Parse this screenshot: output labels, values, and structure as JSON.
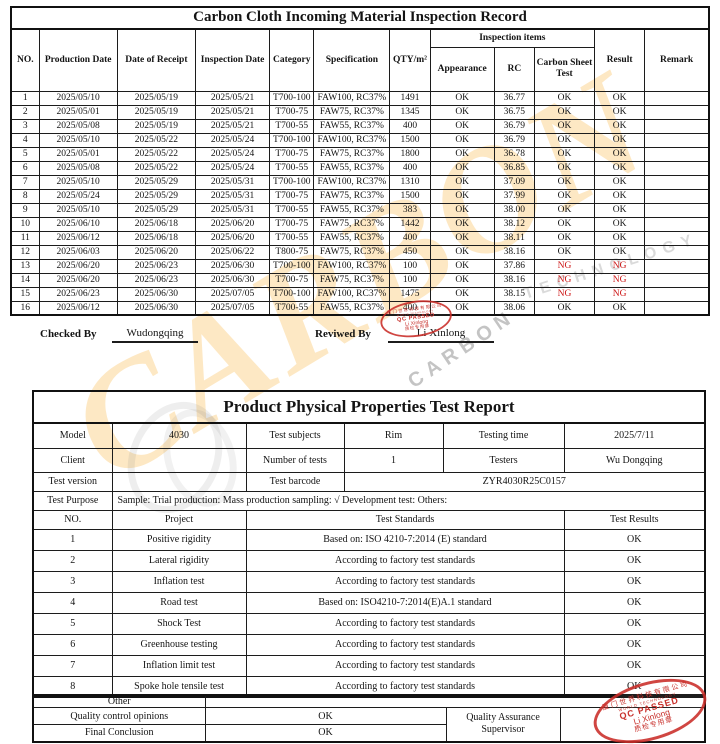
{
  "table1": {
    "title": "Carbon Cloth Incoming Material Inspection Record",
    "headers": {
      "no": "NO.",
      "production_date": "Production Date",
      "date_of_receipt": "Date of Receipt",
      "inspection_date": "Inspection Date",
      "category": "Category",
      "specification": "Specification",
      "qty": "QTY/m²",
      "inspection_items": "Inspection items",
      "appearance": "Appearance",
      "rc": "RC",
      "carbon_sheet_test": "Carbon Sheet Test",
      "result": "Result",
      "remark": "Remark"
    },
    "rows": [
      {
        "no": "1",
        "production_date": "2025/05/10",
        "date_of_receipt": "2025/05/19",
        "inspection_date": "2025/05/21",
        "category": "T700-100",
        "specification": "FAW100, RC37%",
        "qty": "1491",
        "appearance": "OK",
        "rc": "36.77",
        "carbon_sheet_test": "OK",
        "result": "OK",
        "remark": ""
      },
      {
        "no": "2",
        "production_date": "2025/05/01",
        "date_of_receipt": "2025/05/19",
        "inspection_date": "2025/05/21",
        "category": "T700-75",
        "specification": "FAW75, RC37%",
        "qty": "1345",
        "appearance": "OK",
        "rc": "36.75",
        "carbon_sheet_test": "OK",
        "result": "OK",
        "remark": ""
      },
      {
        "no": "3",
        "production_date": "2025/05/08",
        "date_of_receipt": "2025/05/19",
        "inspection_date": "2025/05/21",
        "category": "T700-55",
        "specification": "FAW55, RC37%",
        "qty": "400",
        "appearance": "OK",
        "rc": "36.79",
        "carbon_sheet_test": "OK",
        "result": "OK",
        "remark": ""
      },
      {
        "no": "4",
        "production_date": "2025/05/10",
        "date_of_receipt": "2025/05/22",
        "inspection_date": "2025/05/24",
        "category": "T700-100",
        "specification": "FAW100, RC37%",
        "qty": "1500",
        "appearance": "OK",
        "rc": "36.79",
        "carbon_sheet_test": "OK",
        "result": "OK",
        "remark": ""
      },
      {
        "no": "5",
        "production_date": "2025/05/01",
        "date_of_receipt": "2025/05/22",
        "inspection_date": "2025/05/24",
        "category": "T700-75",
        "specification": "FAW75, RC37%",
        "qty": "1800",
        "appearance": "OK",
        "rc": "36.78",
        "carbon_sheet_test": "OK",
        "result": "OK",
        "remark": ""
      },
      {
        "no": "6",
        "production_date": "2025/05/08",
        "date_of_receipt": "2025/05/22",
        "inspection_date": "2025/05/24",
        "category": "T700-55",
        "specification": "FAW55, RC37%",
        "qty": "400",
        "appearance": "OK",
        "rc": "36.85",
        "carbon_sheet_test": "OK",
        "result": "OK",
        "remark": ""
      },
      {
        "no": "7",
        "production_date": "2025/05/10",
        "date_of_receipt": "2025/05/29",
        "inspection_date": "2025/05/31",
        "category": "T700-100",
        "specification": "FAW100, RC37%",
        "qty": "1310",
        "appearance": "OK",
        "rc": "37.09",
        "carbon_sheet_test": "OK",
        "result": "OK",
        "remark": ""
      },
      {
        "no": "8",
        "production_date": "2025/05/24",
        "date_of_receipt": "2025/05/29",
        "inspection_date": "2025/05/31",
        "category": "T700-75",
        "specification": "FAW75, RC37%",
        "qty": "1500",
        "appearance": "OK",
        "rc": "37.99",
        "carbon_sheet_test": "OK",
        "result": "OK",
        "remark": ""
      },
      {
        "no": "9",
        "production_date": "2025/05/10",
        "date_of_receipt": "2025/05/29",
        "inspection_date": "2025/05/31",
        "category": "T700-55",
        "specification": "FAW55, RC37%",
        "qty": "383",
        "appearance": "OK",
        "rc": "38.00",
        "carbon_sheet_test": "OK",
        "result": "OK",
        "remark": ""
      },
      {
        "no": "10",
        "production_date": "2025/06/10",
        "date_of_receipt": "2025/06/18",
        "inspection_date": "2025/06/20",
        "category": "T700-75",
        "specification": "FAW75, RC37%",
        "qty": "1442",
        "appearance": "OK",
        "rc": "38.12",
        "carbon_sheet_test": "OK",
        "result": "OK",
        "remark": ""
      },
      {
        "no": "11",
        "production_date": "2025/06/12",
        "date_of_receipt": "2025/06/18",
        "inspection_date": "2025/06/20",
        "category": "T700-55",
        "specification": "FAW55, RC37%",
        "qty": "400",
        "appearance": "OK",
        "rc": "38.11",
        "carbon_sheet_test": "OK",
        "result": "OK",
        "remark": ""
      },
      {
        "no": "12",
        "production_date": "2025/06/03",
        "date_of_receipt": "2025/06/20",
        "inspection_date": "2025/06/22",
        "category": "T800-75",
        "specification": "FAW75, RC37%",
        "qty": "450",
        "appearance": "OK",
        "rc": "38.16",
        "carbon_sheet_test": "OK",
        "result": "OK",
        "remark": ""
      },
      {
        "no": "13",
        "production_date": "2025/06/20",
        "date_of_receipt": "2025/06/23",
        "inspection_date": "2025/06/30",
        "category": "T700-100",
        "specification": "FAW100, RC37%",
        "qty": "100",
        "appearance": "OK",
        "rc": "37.86",
        "carbon_sheet_test": "NG",
        "result": "NG",
        "remark": ""
      },
      {
        "no": "14",
        "production_date": "2025/06/20",
        "date_of_receipt": "2025/06/23",
        "inspection_date": "2025/06/30",
        "category": "T700-75",
        "specification": "FAW75, RC37%",
        "qty": "100",
        "appearance": "OK",
        "rc": "38.16",
        "carbon_sheet_test": "NG",
        "result": "NG",
        "remark": ""
      },
      {
        "no": "15",
        "production_date": "2025/06/23",
        "date_of_receipt": "2025/06/30",
        "inspection_date": "2025/07/05",
        "category": "T700-100",
        "specification": "FAW100, RC37%",
        "qty": "1475",
        "appearance": "OK",
        "rc": "38.15",
        "carbon_sheet_test": "NG",
        "result": "NG",
        "remark": ""
      },
      {
        "no": "16",
        "production_date": "2025/06/12",
        "date_of_receipt": "2025/06/30",
        "inspection_date": "2025/07/05",
        "category": "T700-55",
        "specification": "FAW55, RC37%",
        "qty": "400",
        "appearance": "OK",
        "rc": "38.06",
        "carbon_sheet_test": "OK",
        "result": "OK",
        "remark": ""
      }
    ]
  },
  "signatures": {
    "checked_by_label": "Checked By",
    "checked_by_name": "Wudongqing",
    "reviewed_by_label": "Reviwed By",
    "reviewed_by_name": "Li Xinlong"
  },
  "table2": {
    "title": "Product Physical Properties Test Report",
    "info": {
      "model_label": "Model",
      "model": "4030",
      "test_subjects_label": "Test subjects",
      "test_subjects": "Rim",
      "testing_time_label": "Testing time",
      "testing_time": "2025/7/11",
      "client_label": "Client",
      "client": "",
      "number_of_tests_label": "Number of tests",
      "number_of_tests": "1",
      "testers_label": "Testers",
      "testers": "Wu Dongqing",
      "test_version_label": "Test version",
      "test_version": "",
      "test_barcode_label": "Test barcode",
      "test_barcode": "ZYR4030R25C0157",
      "test_purpose_label": "Test Purpose",
      "test_purpose": "Sample: Trial production: Mass production sampling: √ Development test: Others:"
    },
    "headers": {
      "no": "NO.",
      "project": "Project",
      "standards": "Test Standards",
      "results": "Test Results"
    },
    "tests": [
      {
        "no": "1",
        "project": "Positive rigidity",
        "standard": "Based on: ISO 4210-7:2014 (E) standard",
        "result": "OK"
      },
      {
        "no": "2",
        "project": "Lateral rigidity",
        "standard": "According to factory test standards",
        "result": "OK"
      },
      {
        "no": "3",
        "project": "Inflation test",
        "standard": "According to factory test standards",
        "result": "OK"
      },
      {
        "no": "4",
        "project": "Road test",
        "standard": "Based on: ISO4210-7:2014(E)A.1 standard",
        "result": "OK"
      },
      {
        "no": "5",
        "project": "Shock Test",
        "standard": "According to factory test standards",
        "result": "OK"
      },
      {
        "no": "6",
        "project": "Greenhouse testing",
        "standard": "According to factory test standards",
        "result": "OK"
      },
      {
        "no": "7",
        "project": "Inflation limit test",
        "standard": "According to factory test standards",
        "result": "OK"
      },
      {
        "no": "8",
        "project": "Spoke hole tensile test",
        "standard": "According to factory test standards",
        "result": "OK"
      }
    ],
    "other_label": "Other",
    "quality_control_label": "Quality control opinions",
    "quality_control_value": "OK",
    "final_conclusion_label": "Final Conclusion",
    "final_conclusion_value": "OK",
    "qa_supervisor_line1": "Quality Assurance",
    "qa_supervisor_line2": "Supervisor"
  },
  "stamp": {
    "arc_top": "厦门世界科技有限公司",
    "inner_top": "WORLD TECHNOLOGY",
    "center_line1": "QC PASSED",
    "center_line2": "Li Xinlong",
    "arc_bottom": "质检专用章",
    "color": "#c8302b"
  },
  "watermark": {
    "orange_text": "CARBON",
    "gray_text_1": "CARBON",
    "gray_text_2": "TECHNOLOGY",
    "orange_color": "#F6A61C"
  }
}
